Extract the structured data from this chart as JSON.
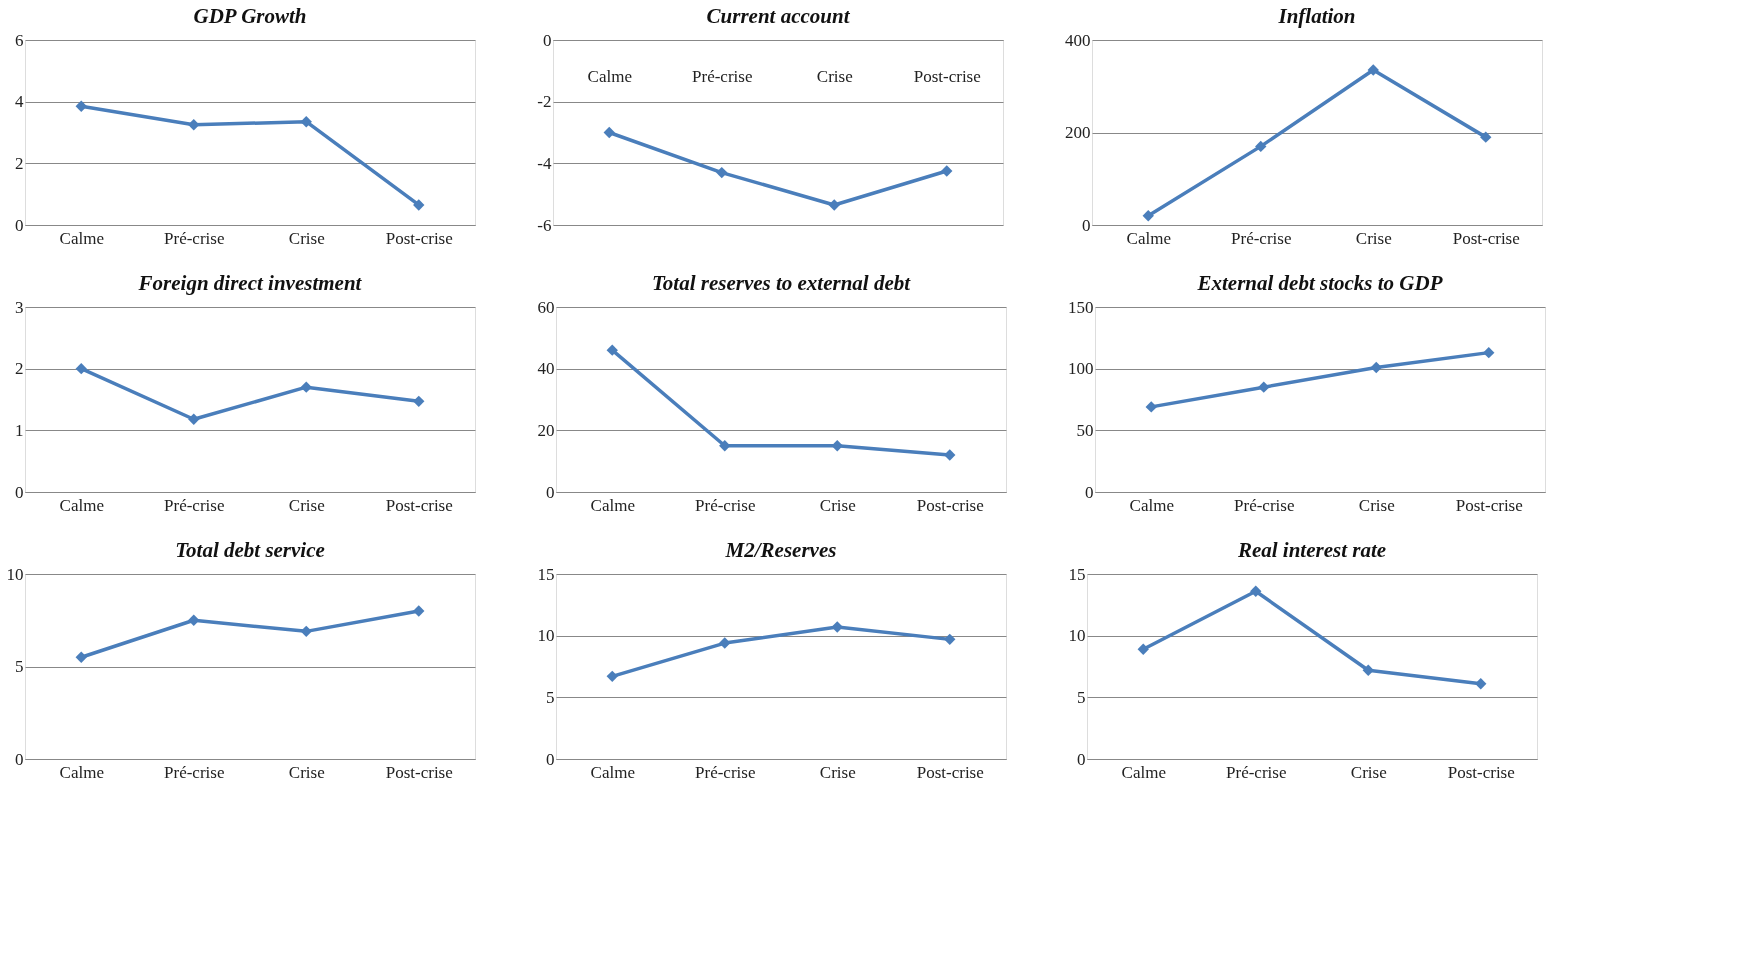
{
  "chart_data": [
    {
      "type": "line",
      "title": "GDP Growth",
      "categories": [
        "Calme",
        "Pré-crise",
        "Crise",
        "Post-crise"
      ],
      "series": [
        {
          "color": "#4a7ebb",
          "values": [
            3.85,
            3.25,
            3.35,
            0.65
          ]
        }
      ],
      "ylim": [
        0,
        6
      ],
      "yticks": [
        0,
        2,
        4,
        6
      ],
      "grid": "y",
      "marker": "diamond",
      "line_style": "solid"
    },
    {
      "type": "line",
      "title": "Current account",
      "categories": [
        "Calme",
        "Pré-crise",
        "Crise",
        "Post-crise"
      ],
      "series": [
        {
          "color": "#4a7ebb",
          "values": [
            -3.0,
            -4.3,
            -5.35,
            -4.25
          ]
        }
      ],
      "ylim": [
        -6,
        0
      ],
      "yticks": [
        -6,
        -4,
        -2,
        0
      ],
      "grid": "y",
      "marker": "diamond",
      "line_style": "solid"
    },
    {
      "type": "line",
      "title": "Inflation",
      "categories": [
        "Calme",
        "Pré-crise",
        "Crise",
        "Post-crise"
      ],
      "series": [
        {
          "color": "#4a7ebb",
          "values": [
            20,
            170,
            335,
            190
          ]
        }
      ],
      "ylim": [
        0,
        400
      ],
      "yticks": [
        0,
        200,
        400
      ],
      "grid": "y",
      "marker": "diamond",
      "line_style": "solid"
    },
    {
      "type": "line",
      "title": "Foreign direct investment",
      "categories": [
        "Calme",
        "Pré-crise",
        "Crise",
        "Post-crise"
      ],
      "series": [
        {
          "color": "#4a7ebb",
          "values": [
            2.0,
            1.18,
            1.7,
            1.47
          ]
        }
      ],
      "ylim": [
        0,
        3
      ],
      "yticks": [
        0,
        1,
        2,
        3
      ],
      "grid": "y",
      "marker": "diamond",
      "line_style": "solid"
    },
    {
      "type": "line",
      "title": "Total reserves to external debt",
      "categories": [
        "Calme",
        "Pré-crise",
        "Crise",
        "Post-crise"
      ],
      "series": [
        {
          "color": "#4a7ebb",
          "values": [
            46,
            15,
            15,
            12
          ]
        }
      ],
      "ylim": [
        0,
        60
      ],
      "yticks": [
        0,
        20,
        40,
        60
      ],
      "grid": "y",
      "marker": "diamond",
      "line_style": "solid"
    },
    {
      "type": "line",
      "title": "External debt stocks to GDP",
      "categories": [
        "Calme",
        "Pré-crise",
        "Crise",
        "Post-crise"
      ],
      "series": [
        {
          "color": "#4a7ebb",
          "values": [
            69,
            85,
            101,
            113
          ]
        }
      ],
      "ylim": [
        0,
        150
      ],
      "yticks": [
        0,
        50,
        100,
        150
      ],
      "grid": "y",
      "marker": "diamond",
      "line_style": "solid"
    },
    {
      "type": "line",
      "title": "Total debt service",
      "categories": [
        "Calme",
        "Pré-crise",
        "Crise",
        "Post-crise"
      ],
      "series": [
        {
          "color": "#4a7ebb",
          "values": [
            5.5,
            7.5,
            6.9,
            8.0
          ]
        }
      ],
      "ylim": [
        0,
        10
      ],
      "yticks": [
        0,
        5,
        10
      ],
      "grid": "y",
      "marker": "diamond",
      "line_style": "solid"
    },
    {
      "type": "line",
      "title": "M2/Reserves",
      "categories": [
        "Calme",
        "Pré-crise",
        "Crise",
        "Post-crise"
      ],
      "series": [
        {
          "color": "#4a7ebb",
          "values": [
            6.7,
            9.4,
            10.7,
            9.7
          ]
        }
      ],
      "ylim": [
        0,
        15
      ],
      "yticks": [
        0,
        5,
        10,
        15
      ],
      "grid": "y",
      "marker": "diamond",
      "line_style": "solid"
    },
    {
      "type": "line",
      "title": "Real interest rate",
      "categories": [
        "Calme",
        "Pré-crise",
        "Crise",
        "Post-crise"
      ],
      "series": [
        {
          "color": "#4a7ebb",
          "values": [
            8.9,
            13.6,
            7.2,
            6.1
          ]
        }
      ],
      "ylim": [
        0,
        15
      ],
      "yticks": [
        0,
        5,
        10,
        15
      ],
      "grid": "y",
      "marker": "diamond",
      "line_style": "solid"
    }
  ]
}
